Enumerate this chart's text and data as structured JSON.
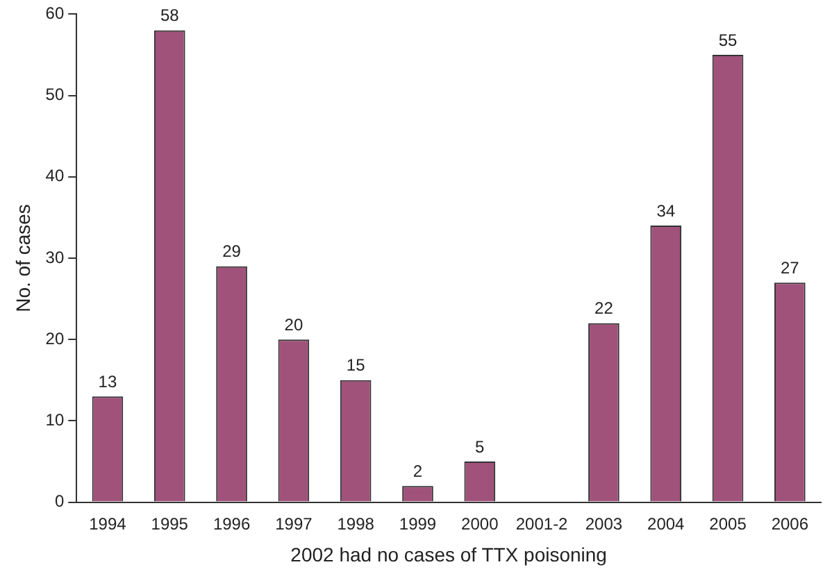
{
  "chart_data": {
    "type": "bar",
    "xlabel": "2002 had no cases of TTX poisoning",
    "ylabel": "No. of cases",
    "categories": [
      "1994",
      "1995",
      "1996",
      "1997",
      "1998",
      "1999",
      "2000",
      "2001-2",
      "2003",
      "2004",
      "2005",
      "2006"
    ],
    "values": [
      13,
      58,
      29,
      20,
      15,
      2,
      5,
      null,
      22,
      34,
      55,
      27
    ],
    "color": "#a0527a",
    "ylim": [
      0,
      60
    ],
    "yticks": [
      0,
      10,
      20,
      30,
      40,
      50,
      60
    ],
    "grid": false,
    "legend": false,
    "data_labels": true
  }
}
